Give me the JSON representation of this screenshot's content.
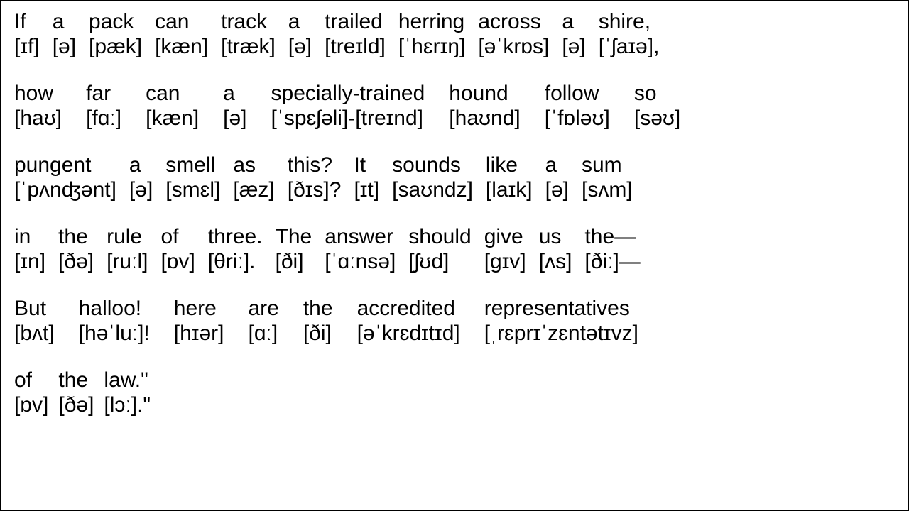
{
  "font": {
    "family": "Arial",
    "size_pt": 30,
    "color": "#000000"
  },
  "background_color": "#ffffff",
  "border_color": "#000000",
  "lines": [
    {
      "gap": "normal",
      "words": [
        {
          "text": "If",
          "ipa": "[ɪf]"
        },
        {
          "text": "a",
          "ipa": "[ə]"
        },
        {
          "text": "pack",
          "ipa": "[pæk]"
        },
        {
          "text": "can",
          "ipa": "[kæn]"
        },
        {
          "text": "track",
          "ipa": "[træk]"
        },
        {
          "text": "a",
          "ipa": "[ə]"
        },
        {
          "text": "trailed",
          "ipa": "[treɪld]"
        },
        {
          "text": "herring",
          "ipa": "[ˈhɛrɪŋ]"
        },
        {
          "text": "across",
          "ipa": "[əˈkrɒs]"
        },
        {
          "text": "a",
          "ipa": "[ə]"
        },
        {
          "text": "shire,",
          "ipa": "[ˈʃaɪə],"
        }
      ]
    },
    {
      "gap": "wide",
      "words": [
        {
          "text": "how",
          "ipa": "[haʊ]"
        },
        {
          "text": "far",
          "ipa": "[fɑː]"
        },
        {
          "text": "can",
          "ipa": "[kæn]"
        },
        {
          "text": "a",
          "ipa": "[ə]"
        },
        {
          "text": "specially-trained",
          "ipa": "[ˈspɛʃəli]-[treɪnd]"
        },
        {
          "text": "hound",
          "ipa": "[haʊnd]"
        },
        {
          "text": "follow",
          "ipa": "[ˈfɒləʊ]"
        },
        {
          "text": "so",
          "ipa": "[səʊ]"
        }
      ]
    },
    {
      "gap": "normal",
      "words": [
        {
          "text": "pungent",
          "ipa": "[ˈpʌnʤənt]"
        },
        {
          "text": "a",
          "ipa": "[ə]"
        },
        {
          "text": "smell",
          "ipa": "[smɛl]"
        },
        {
          "text": "as",
          "ipa": "[æz]"
        },
        {
          "text": "this?",
          "ipa": "[ðɪs]?"
        },
        {
          "text": "It",
          "ipa": "[ɪt]"
        },
        {
          "text": "sounds",
          "ipa": "[saʊndz]"
        },
        {
          "text": "like",
          "ipa": "[laɪk]"
        },
        {
          "text": "a",
          "ipa": "[ə]"
        },
        {
          "text": "sum",
          "ipa": "[sʌm]"
        }
      ]
    },
    {
      "gap": "normal",
      "words": [
        {
          "text": "in",
          "ipa": "[ɪn]"
        },
        {
          "text": "the",
          "ipa": "[ðə]"
        },
        {
          "text": "rule",
          "ipa": "[ruːl]"
        },
        {
          "text": "of",
          "ipa": "[ɒv]"
        },
        {
          "text": "three.",
          "ipa": "[θriː]."
        },
        {
          "text": "The",
          "ipa": "[ði]"
        },
        {
          "text": "answer",
          "ipa": "[ˈɑːnsə]"
        },
        {
          "text": "should",
          "ipa": "[ʃʊd]"
        },
        {
          "text": "give",
          "ipa": "[gɪv]"
        },
        {
          "text": "us",
          "ipa": "[ʌs]"
        },
        {
          "text": "the—",
          "ipa": "[ðiː]—"
        }
      ]
    },
    {
      "gap": "wide",
      "words": [
        {
          "text": "But",
          "ipa": "[bʌt]"
        },
        {
          "text": "halloo!",
          "ipa": "[həˈluː]!"
        },
        {
          "text": "here",
          "ipa": "[hɪər]"
        },
        {
          "text": "are",
          "ipa": "[ɑː]"
        },
        {
          "text": "the",
          "ipa": "[ði]"
        },
        {
          "text": "accredited",
          "ipa": "[əˈkrɛdɪtɪd]"
        },
        {
          "text": "representatives",
          "ipa": "[ˌrɛprɪˈzɛntətɪvz]"
        }
      ]
    },
    {
      "gap": "tight",
      "words": [
        {
          "text": "of",
          "ipa": "[ɒv]"
        },
        {
          "text": "the",
          "ipa": "[ðə]"
        },
        {
          "text": "law.\"",
          "ipa": "[lɔː].\""
        }
      ]
    }
  ]
}
